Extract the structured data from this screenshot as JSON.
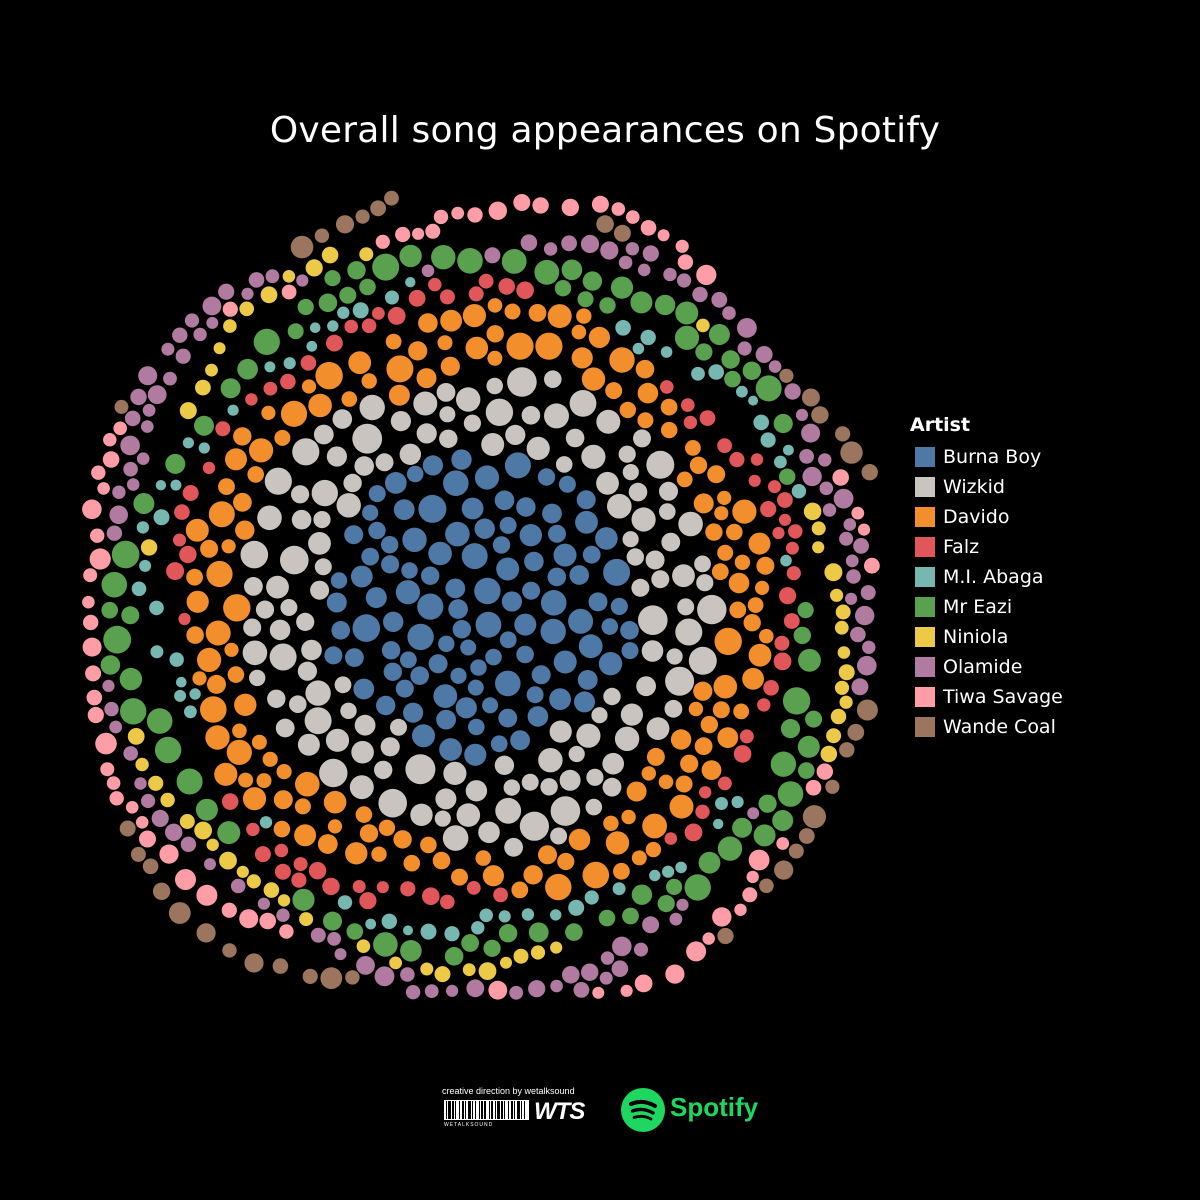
{
  "chart_data": {
    "type": "packed-bubble",
    "title": "Overall song appearances on Spotify",
    "legend": {
      "title": "Artist",
      "placement": "right"
    },
    "series": [
      {
        "name": "Burna Boy",
        "color": "#4e79a7",
        "approx_bubbles": 170
      },
      {
        "name": "Wizkid",
        "color": "#c9c4bf",
        "approx_bubbles": 150
      },
      {
        "name": "Davido",
        "color": "#f28e2b",
        "approx_bubbles": 150
      },
      {
        "name": "Falz",
        "color": "#e15759",
        "approx_bubbles": 70
      },
      {
        "name": "M.I. Abaga",
        "color": "#76b7b2",
        "approx_bubbles": 60
      },
      {
        "name": "Mr Eazi",
        "color": "#59a14f",
        "approx_bubbles": 110
      },
      {
        "name": "Niniola",
        "color": "#edc948",
        "approx_bubbles": 50
      },
      {
        "name": "Olamide",
        "color": "#b07aa1",
        "approx_bubbles": 190
      },
      {
        "name": "Tiwa Savage",
        "color": "#ff9da7",
        "approx_bubbles": 110
      },
      {
        "name": "Wande Coal",
        "color": "#9c755f",
        "approx_bubbles": 50
      }
    ]
  },
  "footer": {
    "credit": "creative direction by wetalksound",
    "barcode_text": "WETALKSOUND",
    "wts_logo": "WTS",
    "spotify_label": "Spotify"
  }
}
